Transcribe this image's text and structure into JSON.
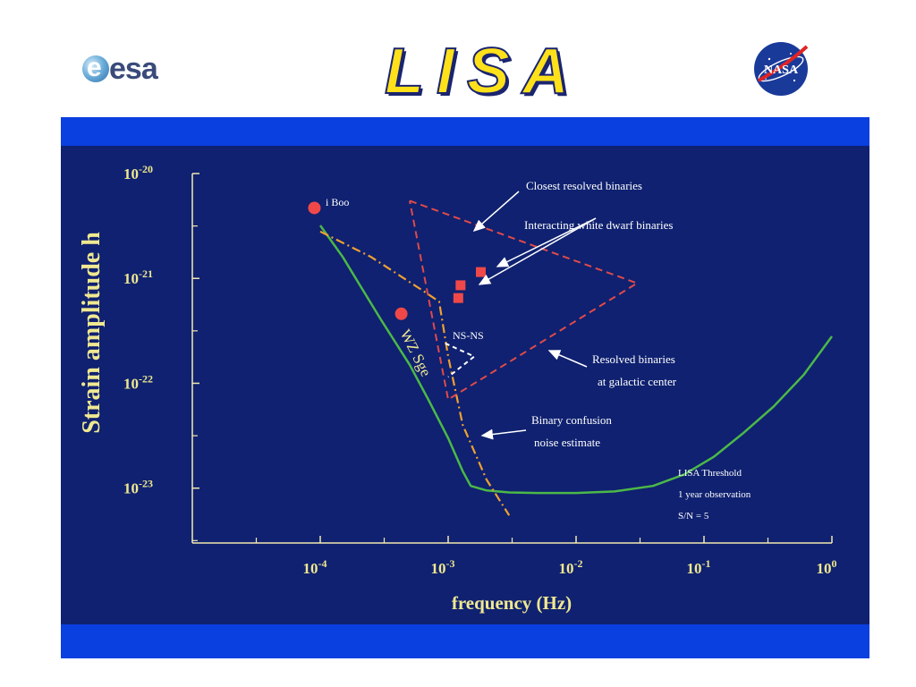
{
  "header": {
    "esa_label": "esa",
    "title": "LISA",
    "nasa_label": "NASA"
  },
  "colors": {
    "panel": "#0d2a8a",
    "band": "#0a3fe0",
    "axis": "#f3e9b0",
    "threshold": "#4cb848",
    "dashed_orange": "#f0a030",
    "dashed_red": "#e04a4a",
    "markers": "#f04848",
    "label_text": "#f0e890"
  },
  "chart_data": {
    "type": "line",
    "xlabel": "frequency (Hz)",
    "ylabel": "Strain amplitude h",
    "x_scale": "log",
    "y_scale": "log",
    "xlim": [
      1e-05,
      1
    ],
    "ylim": [
      3e-24,
      1e-20
    ],
    "x_ticks": [
      {
        "value": 0.0001,
        "base": "10",
        "exp": "-4"
      },
      {
        "value": 0.001,
        "base": "10",
        "exp": "-3"
      },
      {
        "value": 0.01,
        "base": "10",
        "exp": "-2"
      },
      {
        "value": 0.1,
        "base": "10",
        "exp": "-1"
      },
      {
        "value": 1,
        "base": "10",
        "exp": "0"
      }
    ],
    "y_ticks": [
      {
        "value": 1e-20,
        "base": "10",
        "exp": "-20"
      },
      {
        "value": 1e-21,
        "base": "10",
        "exp": "-21"
      },
      {
        "value": 1e-22,
        "base": "10",
        "exp": "-22"
      },
      {
        "value": 1e-23,
        "base": "10",
        "exp": "-23"
      }
    ],
    "series": [
      {
        "name": "LISA Threshold",
        "style": "solid",
        "x": [
          0.0001,
          0.00015,
          0.0002,
          0.0003,
          0.0005,
          0.0007,
          0.001,
          0.0013,
          0.0015,
          0.002,
          0.003,
          0.005,
          0.01,
          0.02,
          0.04,
          0.07,
          0.12,
          0.2,
          0.35,
          0.6,
          1
        ],
        "y": [
          3.2e-21,
          1.6e-21,
          9e-22,
          4e-22,
          1.5e-22,
          7e-23,
          3e-23,
          1.45e-23,
          1.05e-23,
          9.5e-24,
          9.1e-24,
          9e-24,
          9e-24,
          9.3e-24,
          1.05e-23,
          1.35e-23,
          2e-23,
          3.3e-23,
          6e-23,
          1.2e-22,
          2.8e-22
        ]
      },
      {
        "name": "Binary confusion noise estimate",
        "style": "dash-dot",
        "x": [
          0.0001,
          0.00025,
          0.00065,
          0.00085,
          0.001,
          0.0013,
          0.002,
          0.003
        ],
        "y": [
          2.8e-21,
          1.6e-21,
          7.5e-22,
          6e-22,
          1.8e-22,
          4e-23,
          1.2e-23,
          5.5e-24
        ]
      },
      {
        "name": "Resolved binaries",
        "style": "dashed",
        "x": [
          0.0005,
          0.03,
          0.001,
          0.0005
        ],
        "y": [
          5.5e-21,
          9e-22,
          7e-23,
          5.5e-21
        ]
      },
      {
        "name": "NS-NS",
        "style": "dashed-small",
        "x": [
          0.00095,
          0.0016,
          0.001
        ],
        "y": [
          2.4e-22,
          1.8e-22,
          1.15e-22
        ]
      }
    ],
    "sources": [
      {
        "label": "i Boo",
        "x": 9e-05,
        "y": 4.7e-21,
        "shape": "circle"
      },
      {
        "label": "WZ Sge",
        "x": 0.00043,
        "y": 4.6e-22,
        "shape": "circle"
      },
      {
        "label": "",
        "x": 0.0012,
        "y": 6.5e-22,
        "shape": "square"
      },
      {
        "label": "",
        "x": 0.00125,
        "y": 8.6e-22,
        "shape": "square"
      },
      {
        "label": "",
        "x": 0.0018,
        "y": 1.15e-21,
        "shape": "square"
      }
    ],
    "annotations": {
      "i_boo": "i Boo",
      "wz_sge": "WZ Sge",
      "ns_ns": "NS-NS",
      "closest": "Closest resolved  binaries",
      "interacting": "Interacting white dwarf binaries",
      "resolved_1": "Resolved binaries",
      "resolved_2": "at galactic center",
      "confusion_1": "Binary confusion",
      "confusion_2": "noise estimate",
      "threshold_1": "LISA Threshold",
      "threshold_2": "1 year observation",
      "threshold_3": "S/N = 5"
    }
  }
}
